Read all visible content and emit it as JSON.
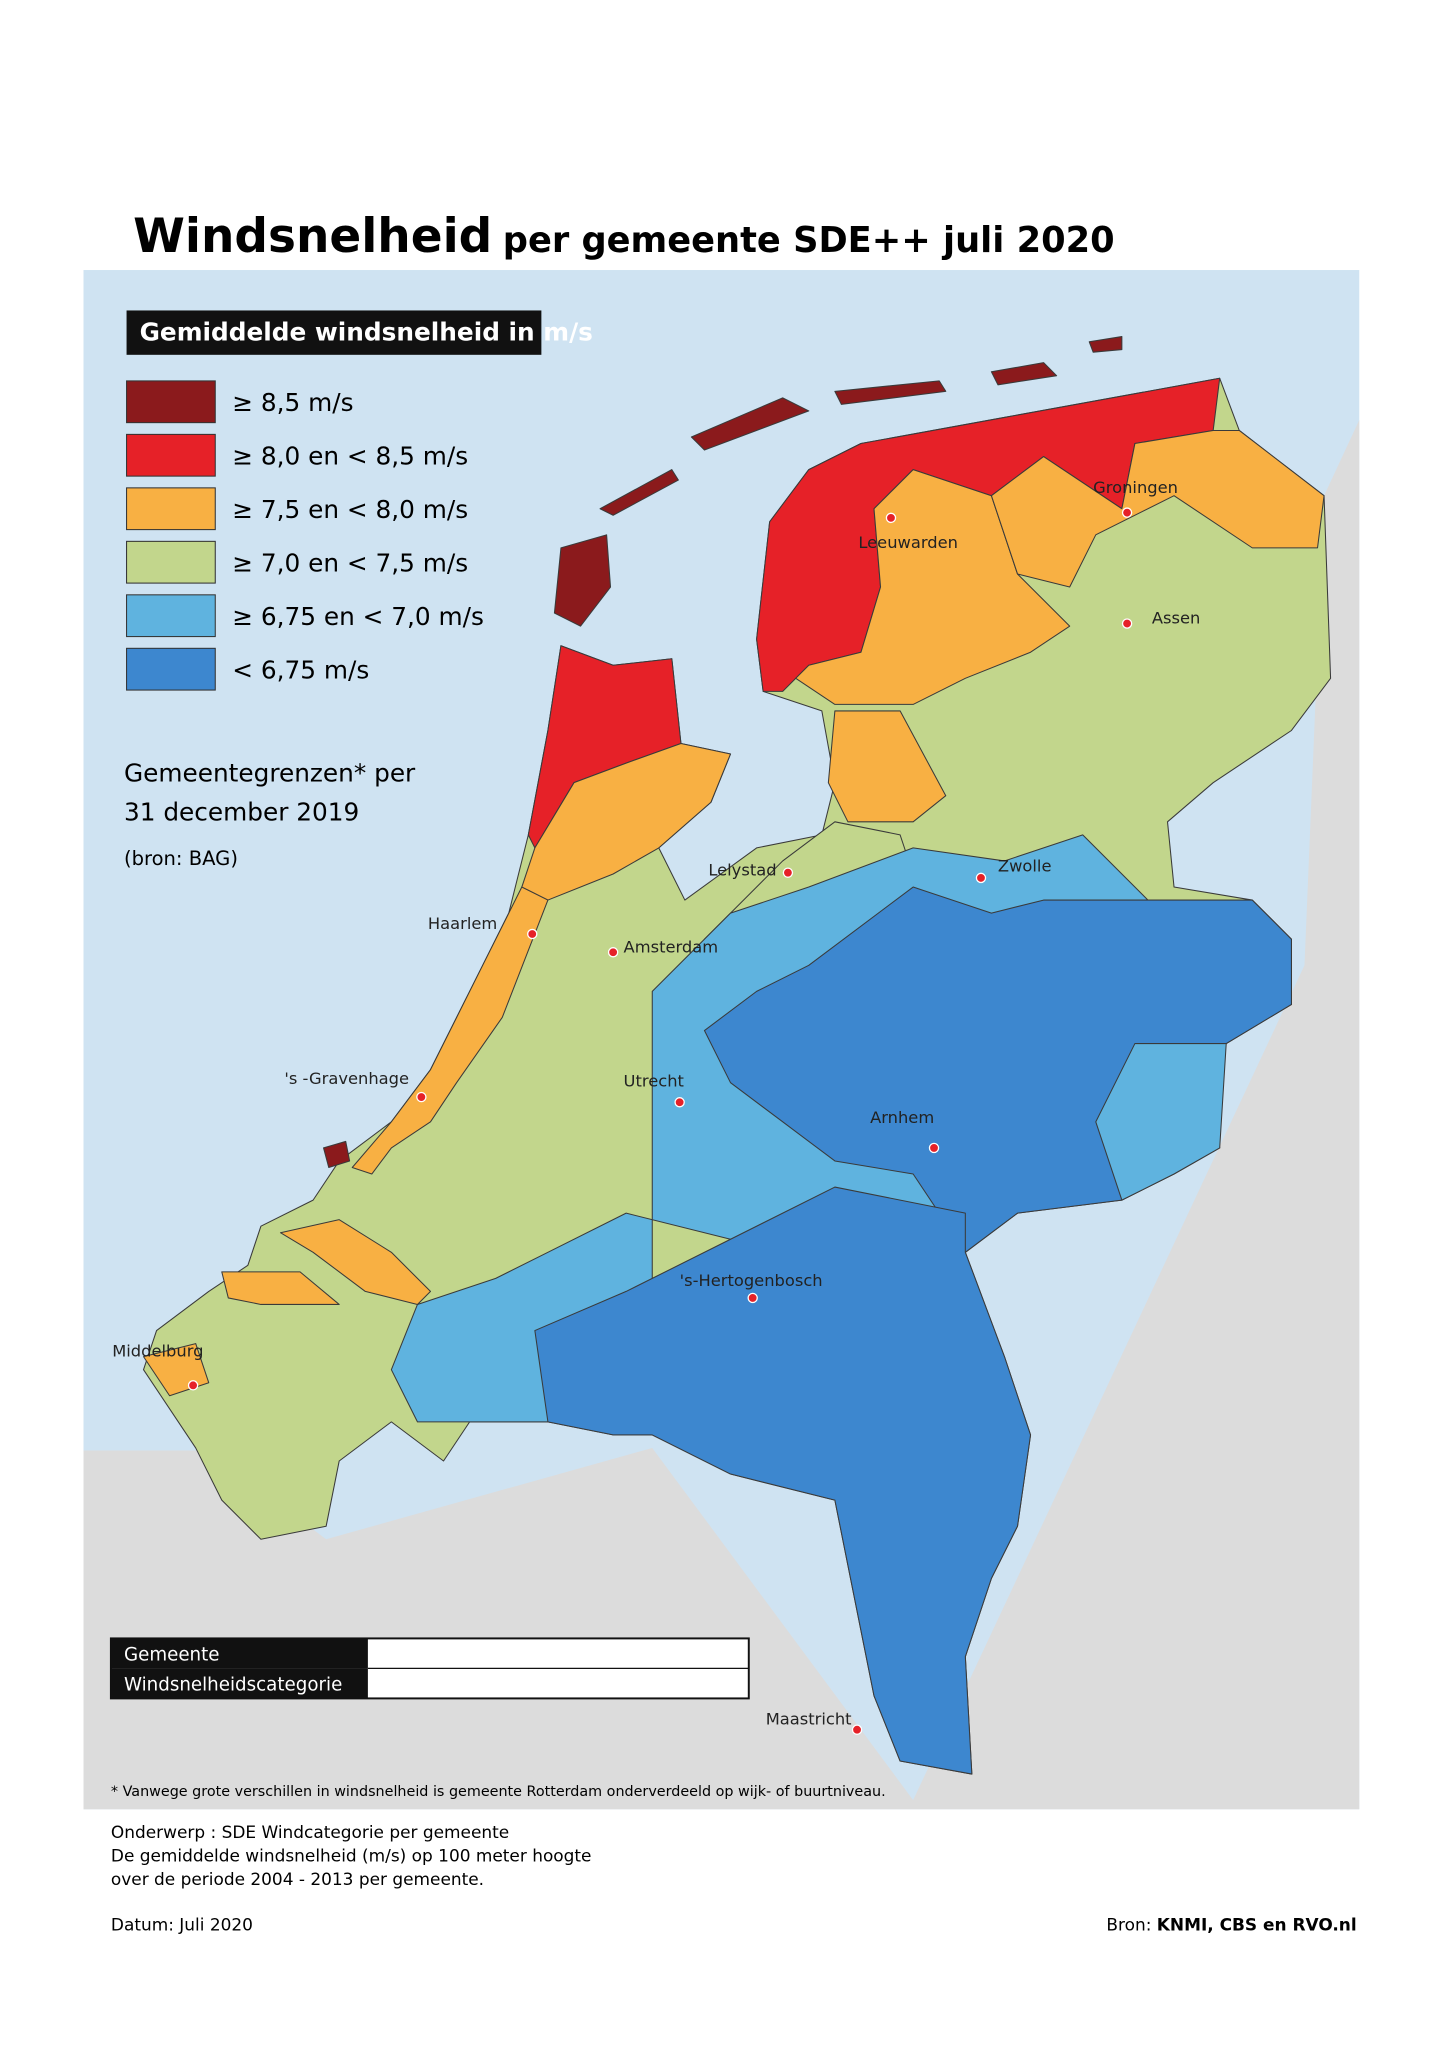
{
  "title": {
    "main": "Windsnelheid",
    "rest": "per gemeente SDE++ juli 2020"
  },
  "legend": {
    "title": "Gemiddelde windsnelheid in m/s",
    "items": [
      {
        "label": "≥ 8,5 m/s",
        "color": "#8b1a1c"
      },
      {
        "label": "≥ 8,0 en < 8,5 m/s",
        "color": "#e62128"
      },
      {
        "label": "≥ 7,5 en < 8,0 m/s",
        "color": "#f8b043"
      },
      {
        "label": "≥ 7,0 en < 7,5 m/s",
        "color": "#c2d68c"
      },
      {
        "label": "≥ 6,75 en < 7,0 m/s",
        "color": "#5fb3df"
      },
      {
        "label": "< 6,75 m/s",
        "color": "#3d87cf"
      }
    ]
  },
  "boundaries": {
    "line1": "Gemeentegrenzen* per",
    "line2": "31 december 2019",
    "source": "(bron: BAG)"
  },
  "cities": [
    "Leeuwarden",
    "Groningen",
    "Assen",
    "Lelystad",
    "Zwolle",
    "Haarlem",
    "Amsterdam",
    "'s -Gravenhage",
    "Utrecht",
    "Arnhem",
    "'s-Hertogenbosch",
    "Middelburg",
    "Maastricht"
  ],
  "info_table": {
    "rows": [
      "Gemeente",
      "Windsnelheidscategorie"
    ]
  },
  "footnote": "* Vanwege grote verschillen in windsnelheid is gemeente Rotterdam onderverdeeld op wijk- of buurtniveau.",
  "description": [
    "Onderwerp : SDE Windcategorie per gemeente",
    "De gemiddelde windsnelheid (m/s) op 100 meter hoogte",
    "over de periode 2004 - 2013 per gemeente."
  ],
  "date": "Datum: Juli 2020",
  "source": {
    "label": "Bron: ",
    "value": "KNMI, CBS en RVO.nl"
  }
}
